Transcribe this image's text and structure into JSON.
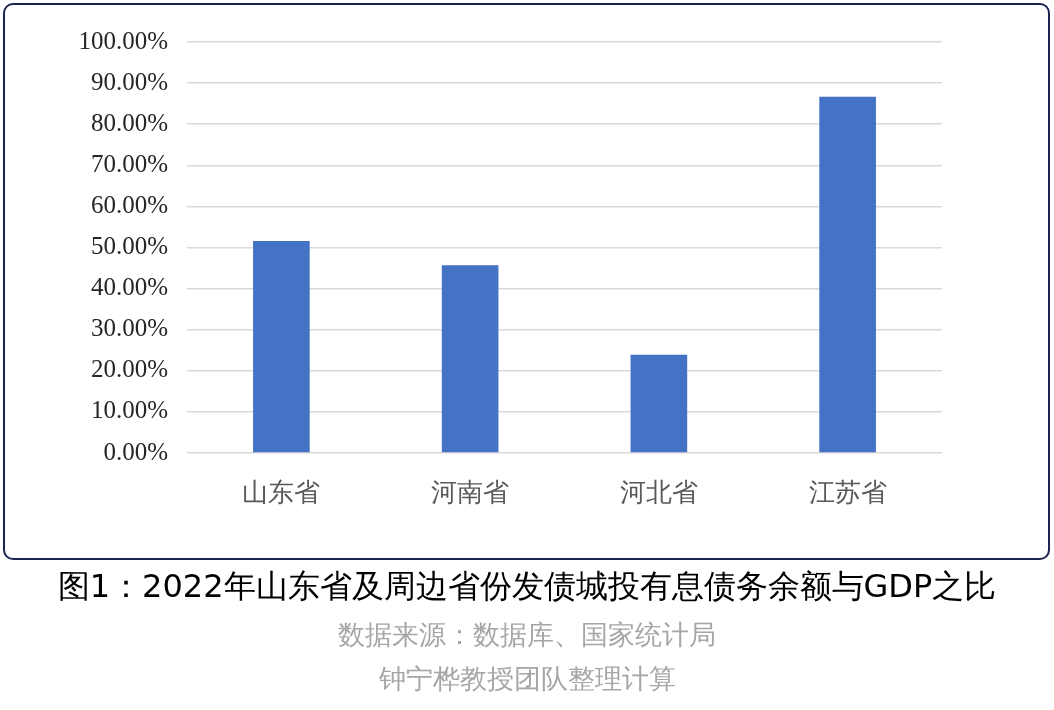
{
  "chart_data": {
    "type": "bar",
    "title": "图1：2022年山东省及周边省份发债城投有息债务余额与GDP之比",
    "categories": [
      "山东省",
      "河南省",
      "河北省",
      "江苏省"
    ],
    "values": [
      51.6,
      45.7,
      23.9,
      86.7
    ],
    "color": "#4472c4",
    "ylim": [
      0,
      100
    ],
    "yticks": [
      {
        "value": 0,
        "label": "0.00%"
      },
      {
        "value": 10,
        "label": "10.00%"
      },
      {
        "value": 20,
        "label": "20.00%"
      },
      {
        "value": 30,
        "label": "30.00%"
      },
      {
        "value": 40,
        "label": "40.00%"
      },
      {
        "value": 50,
        "label": "50.00%"
      },
      {
        "value": 60,
        "label": "60.00%"
      },
      {
        "value": 70,
        "label": "70.00%"
      },
      {
        "value": 80,
        "label": "80.00%"
      },
      {
        "value": 90,
        "label": "90.00%"
      },
      {
        "value": 100,
        "label": "100.00%"
      }
    ],
    "grid": "y",
    "annotations": [
      "数据来源：数据库、国家统计局",
      "钟宁桦教授团队整理计算"
    ]
  }
}
